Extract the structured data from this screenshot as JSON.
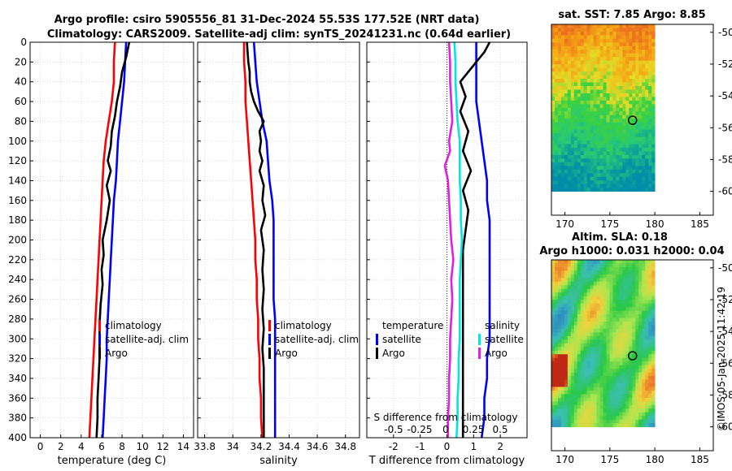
{
  "header": {
    "title_line1": "Argo profile: csiro 5905556_81 31-Dec-2024 55.53S 177.52E (NRT data)",
    "title_line2": "Climatology: CARS2009. Satellite-adj clim: synTS_20241231.nc (0.64d earlier)"
  },
  "copyright": "©IMOS 05-Jan-2025 11:42:19",
  "chart_data": [
    {
      "type": "line",
      "panel": "temperature",
      "xlabel": "temperature (deg C)",
      "ylabel": "",
      "xlim": [
        -1,
        15
      ],
      "ylim": [
        400,
        0
      ],
      "xticks": [
        0,
        2,
        4,
        6,
        8,
        10,
        12,
        14
      ],
      "yticks": [
        0,
        20,
        40,
        60,
        80,
        100,
        120,
        140,
        160,
        180,
        200,
        220,
        240,
        260,
        280,
        300,
        320,
        340,
        360,
        380,
        400
      ],
      "legend": [
        "climatology",
        "satellite-adj. clim",
        "Argo"
      ],
      "series": [
        {
          "name": "climatology",
          "color": "#ff0000",
          "points": [
            [
              7.3,
              0
            ],
            [
              7.2,
              20
            ],
            [
              7.2,
              40
            ],
            [
              7.0,
              60
            ],
            [
              6.7,
              80
            ],
            [
              6.4,
              100
            ],
            [
              6.2,
              120
            ],
            [
              6.1,
              140
            ],
            [
              6.0,
              160
            ],
            [
              5.9,
              180
            ],
            [
              5.8,
              200
            ],
            [
              5.7,
              220
            ],
            [
              5.6,
              240
            ],
            [
              5.5,
              260
            ],
            [
              5.4,
              280
            ],
            [
              5.3,
              300
            ],
            [
              5.2,
              320
            ],
            [
              5.1,
              340
            ],
            [
              5.0,
              360
            ],
            [
              4.9,
              380
            ],
            [
              4.8,
              400
            ]
          ]
        },
        {
          "name": "satellite-adj. clim",
          "color": "#0000ff",
          "points": [
            [
              8.4,
              0
            ],
            [
              8.3,
              20
            ],
            [
              8.2,
              40
            ],
            [
              8.0,
              60
            ],
            [
              7.8,
              80
            ],
            [
              7.6,
              100
            ],
            [
              7.5,
              120
            ],
            [
              7.4,
              140
            ],
            [
              7.2,
              160
            ],
            [
              7.1,
              180
            ],
            [
              7.0,
              200
            ],
            [
              6.9,
              220
            ],
            [
              6.8,
              240
            ],
            [
              6.7,
              260
            ],
            [
              6.6,
              280
            ],
            [
              6.5,
              300
            ],
            [
              6.5,
              320
            ],
            [
              6.4,
              340
            ],
            [
              6.3,
              360
            ],
            [
              6.2,
              380
            ],
            [
              6.1,
              400
            ]
          ]
        },
        {
          "name": "Argo",
          "color": "#000000",
          "points": [
            [
              8.7,
              0
            ],
            [
              8.4,
              15
            ],
            [
              8.0,
              30
            ],
            [
              7.8,
              45
            ],
            [
              7.5,
              60
            ],
            [
              7.3,
              75
            ],
            [
              7.0,
              90
            ],
            [
              6.9,
              105
            ],
            [
              6.6,
              120
            ],
            [
              6.9,
              130
            ],
            [
              6.5,
              145
            ],
            [
              6.8,
              160
            ],
            [
              6.5,
              180
            ],
            [
              6.1,
              200
            ],
            [
              6.2,
              215
            ],
            [
              6.0,
              230
            ],
            [
              6.1,
              245
            ],
            [
              5.9,
              265
            ],
            [
              5.8,
              285
            ],
            [
              5.8,
              300
            ],
            [
              5.8,
              320
            ],
            [
              5.7,
              340
            ],
            [
              5.6,
              360
            ],
            [
              5.6,
              380
            ],
            [
              5.5,
              400
            ]
          ]
        }
      ]
    },
    {
      "type": "line",
      "panel": "salinity",
      "xlabel": "salinity",
      "xlim": [
        33.75,
        34.9
      ],
      "ylim": [
        400,
        0
      ],
      "xticks": [
        33.8,
        34,
        34.2,
        34.4,
        34.6,
        34.8
      ],
      "xticklabels": [
        "33.8",
        "34",
        "34.2",
        "34.4",
        "34.6",
        "34.8"
      ],
      "legend": [
        "climatology",
        "satellite-adj. clim",
        "Argo"
      ],
      "series": [
        {
          "name": "climatology",
          "color": "#ff0000",
          "points": [
            [
              34.08,
              0
            ],
            [
              34.08,
              20
            ],
            [
              34.09,
              40
            ],
            [
              34.09,
              60
            ],
            [
              34.1,
              80
            ],
            [
              34.11,
              100
            ],
            [
              34.12,
              120
            ],
            [
              34.13,
              140
            ],
            [
              34.14,
              160
            ],
            [
              34.15,
              180
            ],
            [
              34.16,
              200
            ],
            [
              34.16,
              220
            ],
            [
              34.17,
              240
            ],
            [
              34.17,
              260
            ],
            [
              34.18,
              280
            ],
            [
              34.18,
              300
            ],
            [
              34.19,
              320
            ],
            [
              34.19,
              340
            ],
            [
              34.2,
              360
            ],
            [
              34.2,
              380
            ],
            [
              34.21,
              400
            ]
          ]
        },
        {
          "name": "satellite-adj. clim",
          "color": "#0000ff",
          "points": [
            [
              34.15,
              0
            ],
            [
              34.16,
              20
            ],
            [
              34.17,
              40
            ],
            [
              34.19,
              60
            ],
            [
              34.21,
              80
            ],
            [
              34.24,
              100
            ],
            [
              34.25,
              120
            ],
            [
              34.26,
              140
            ],
            [
              34.28,
              160
            ],
            [
              34.29,
              180
            ],
            [
              34.29,
              200
            ],
            [
              34.29,
              220
            ],
            [
              34.29,
              240
            ],
            [
              34.29,
              260
            ],
            [
              34.3,
              280
            ],
            [
              34.3,
              300
            ],
            [
              34.3,
              320
            ],
            [
              34.3,
              340
            ],
            [
              34.3,
              360
            ],
            [
              34.3,
              380
            ],
            [
              34.3,
              400
            ]
          ]
        },
        {
          "name": "Argo",
          "color": "#000000",
          "points": [
            [
              34.1,
              0
            ],
            [
              34.11,
              20
            ],
            [
              34.12,
              30
            ],
            [
              34.12,
              40
            ],
            [
              34.13,
              50
            ],
            [
              34.15,
              60
            ],
            [
              34.18,
              70
            ],
            [
              34.22,
              80
            ],
            [
              34.19,
              90
            ],
            [
              34.2,
              100
            ],
            [
              34.19,
              110
            ],
            [
              34.21,
              120
            ],
            [
              34.19,
              130
            ],
            [
              34.22,
              145
            ],
            [
              34.21,
              160
            ],
            [
              34.23,
              175
            ],
            [
              34.2,
              190
            ],
            [
              34.22,
              210
            ],
            [
              34.21,
              230
            ],
            [
              34.22,
              250
            ],
            [
              34.21,
              270
            ],
            [
              34.22,
              290
            ],
            [
              34.21,
              310
            ],
            [
              34.22,
              330
            ],
            [
              34.22,
              360
            ],
            [
              34.22,
              380
            ],
            [
              34.22,
              400
            ]
          ]
        }
      ]
    },
    {
      "type": "line",
      "panel": "difference",
      "xlabel": "T difference from climatology",
      "xlim": [
        -3,
        3
      ],
      "ylim": [
        400,
        0
      ],
      "xticks": [
        -2,
        -1,
        0,
        1,
        2
      ],
      "top_axis_label": "S difference from climatology",
      "top_ticks": [
        "-0.5",
        "-0.25",
        "0",
        "0.25",
        "0.5"
      ],
      "legend_temperature": {
        "title": "temperature",
        "items": [
          "satellite",
          "Argo"
        ]
      },
      "legend_salinity": {
        "title": "salinity",
        "items": [
          "satellite",
          "Argo"
        ]
      },
      "series": [
        {
          "name": "temperature satellite",
          "color": "#0000ff",
          "points": [
            [
              1.1,
              0
            ],
            [
              1.1,
              20
            ],
            [
              1.1,
              40
            ],
            [
              1.1,
              60
            ],
            [
              1.2,
              80
            ],
            [
              1.3,
              100
            ],
            [
              1.4,
              120
            ],
            [
              1.5,
              140
            ],
            [
              1.5,
              160
            ],
            [
              1.6,
              180
            ],
            [
              1.6,
              200
            ],
            [
              1.6,
              220
            ],
            [
              1.6,
              240
            ],
            [
              1.6,
              260
            ],
            [
              1.6,
              280
            ],
            [
              1.6,
              300
            ],
            [
              1.5,
              320
            ],
            [
              1.5,
              340
            ],
            [
              1.4,
              360
            ],
            [
              1.4,
              380
            ],
            [
              1.3,
              400
            ]
          ]
        },
        {
          "name": "temperature Argo",
          "color": "#000000",
          "points": [
            [
              1.6,
              0
            ],
            [
              1.4,
              10
            ],
            [
              1.1,
              20
            ],
            [
              0.8,
              30
            ],
            [
              0.5,
              40
            ],
            [
              0.7,
              55
            ],
            [
              0.5,
              70
            ],
            [
              0.8,
              90
            ],
            [
              0.6,
              110
            ],
            [
              0.9,
              130
            ],
            [
              0.6,
              150
            ],
            [
              0.8,
              170
            ],
            [
              0.7,
              190
            ],
            [
              0.6,
              210
            ],
            [
              0.6,
              230
            ],
            [
              0.6,
              250
            ],
            [
              0.6,
              270
            ],
            [
              0.6,
              290
            ],
            [
              0.6,
              310
            ],
            [
              0.6,
              330
            ],
            [
              0.6,
              350
            ],
            [
              0.6,
              375
            ],
            [
              0.6,
              400
            ]
          ]
        },
        {
          "name": "salinity satellite",
          "color": "#00e5e5",
          "points": [
            [
              0.07,
              0
            ],
            [
              0.08,
              20
            ],
            [
              0.08,
              40
            ],
            [
              0.09,
              60
            ],
            [
              0.1,
              80
            ],
            [
              0.12,
              100
            ],
            [
              0.12,
              120
            ],
            [
              0.12,
              140
            ],
            [
              0.13,
              160
            ],
            [
              0.13,
              180
            ],
            [
              0.14,
              200
            ],
            [
              0.13,
              220
            ],
            [
              0.12,
              240
            ],
            [
              0.12,
              260
            ],
            [
              0.12,
              280
            ],
            [
              0.12,
              300
            ],
            [
              0.11,
              320
            ],
            [
              0.11,
              340
            ],
            [
              0.1,
              360
            ],
            [
              0.1,
              380
            ],
            [
              0.09,
              400
            ]
          ]
        },
        {
          "name": "salinity Argo",
          "color": "#e020e0",
          "points": [
            [
              0.02,
              0
            ],
            [
              0.03,
              20
            ],
            [
              0.03,
              40
            ],
            [
              0.04,
              60
            ],
            [
              0.05,
              80
            ],
            [
              0.02,
              100
            ],
            [
              0.03,
              110
            ],
            [
              -0.02,
              125
            ],
            [
              0.01,
              140
            ],
            [
              0.02,
              160
            ],
            [
              0.03,
              180
            ],
            [
              0.04,
              200
            ],
            [
              0.06,
              220
            ],
            [
              0.04,
              240
            ],
            [
              0.05,
              260
            ],
            [
              0.04,
              280
            ],
            [
              0.03,
              300
            ],
            [
              0.03,
              320
            ],
            [
              0.02,
              340
            ],
            [
              0.02,
              360
            ],
            [
              0.01,
              380
            ],
            [
              0.01,
              400
            ]
          ]
        }
      ]
    },
    {
      "type": "heatmap",
      "panel": "sst_map",
      "title": "sat. SST: 7.85 Argo: 8.85",
      "xlim": [
        168.5,
        186.5
      ],
      "ylim": [
        -61.5,
        -49.5
      ],
      "xticks": [
        170,
        175,
        180,
        185
      ],
      "yticks": [
        -50,
        -52,
        -54,
        -56,
        -58,
        -60
      ],
      "marker": {
        "lon": 177.52,
        "lat": -55.53
      }
    },
    {
      "type": "heatmap",
      "panel": "sla_map",
      "title_line1": "Altim. SLA: 0.18",
      "title_line2": "Argo h1000: 0.031 h2000: 0.04",
      "xlim": [
        168.5,
        186.5
      ],
      "ylim": [
        -61.5,
        -49.5
      ],
      "xticks": [
        170,
        175,
        180,
        185
      ],
      "yticks": [
        -50,
        -52,
        -54,
        -56,
        -58,
        -60
      ],
      "marker": {
        "lon": 177.52,
        "lat": -55.53
      }
    }
  ]
}
